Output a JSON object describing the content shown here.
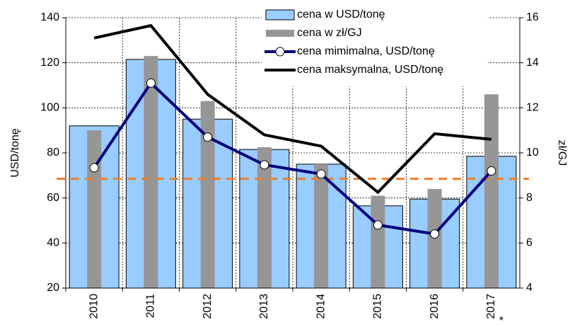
{
  "chart_data": {
    "type": "bar_line_combo",
    "categories": [
      "2010",
      "2011",
      "2012",
      "2013",
      "2014",
      "2015",
      "2016",
      "2017"
    ],
    "note_marker": "*",
    "y_label": "USD/tonę",
    "y2_label": "zł/GJ",
    "ylim": [
      20,
      140
    ],
    "yticks": [
      20,
      40,
      60,
      80,
      100,
      120,
      140
    ],
    "y2lim": [
      4,
      16
    ],
    "y2ticks": [
      4,
      6,
      8,
      10,
      12,
      14,
      16
    ],
    "grid": true,
    "legend": "top",
    "reference_line": {
      "value": 68.5,
      "color": "#f07d2a"
    },
    "series": [
      {
        "name": "cena w USD/tonę",
        "kind": "bar",
        "color": "#99ccff",
        "values": [
          92,
          121.5,
          95,
          81.5,
          75,
          56.5,
          59.5,
          78.5
        ]
      },
      {
        "name": "cena w zł/GJ",
        "kind": "bar",
        "axis": "y2",
        "color": "#969696",
        "values": [
          11,
          14.3,
          12.3,
          10.25,
          9.5,
          8.1,
          8.4,
          12.6
        ]
      },
      {
        "name": "cena mimimalna, USD/tonę",
        "kind": "line",
        "color": "#000080",
        "values": [
          73.4,
          111,
          87,
          74.7,
          70.6,
          48,
          44,
          72
        ]
      },
      {
        "name": "cena maksymalna, USD/tonę",
        "kind": "line",
        "color": "#000000",
        "values": [
          131,
          136.5,
          106,
          88,
          83,
          62.5,
          88.5,
          86
        ]
      }
    ]
  }
}
